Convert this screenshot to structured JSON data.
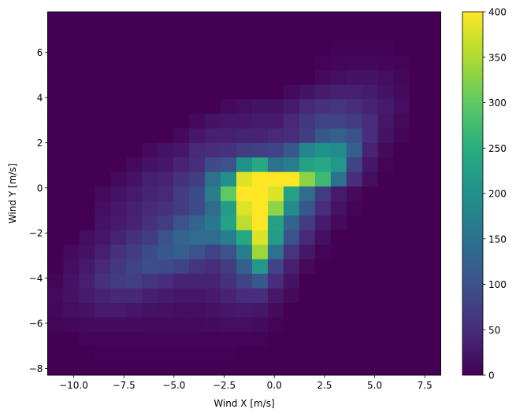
{
  "chart_data": {
    "type": "heatmap",
    "title": "",
    "xlabel": "Wind X [m/s]",
    "ylabel": "Wind Y [m/s]",
    "xlim": [
      -11.3,
      8.3
    ],
    "ylim": [
      -8.3,
      7.8
    ],
    "xticks": [
      -10.0,
      -7.5,
      -5.0,
      -2.5,
      0.0,
      2.5,
      5.0,
      7.5
    ],
    "xtick_labels": [
      "−10.0",
      "−7.5",
      "−5.0",
      "−2.5",
      "0.0",
      "2.5",
      "5.0",
      "7.5"
    ],
    "yticks": [
      -8,
      -6,
      -4,
      -2,
      0,
      2,
      4,
      6
    ],
    "ytick_labels": [
      "−8",
      "−6",
      "−4",
      "−2",
      "0",
      "2",
      "4",
      "6"
    ],
    "colormap": "viridis",
    "colorbar": {
      "range": [
        0,
        400
      ],
      "ticks": [
        0,
        50,
        100,
        150,
        200,
        250,
        300,
        350,
        400
      ],
      "tick_labels": [
        "0",
        "50",
        "100",
        "150",
        "200",
        "250",
        "300",
        "350",
        "400"
      ]
    },
    "grid": false,
    "bins": [
      25,
      25
    ],
    "counts_by_row_ascending_y": [
      [
        0,
        0,
        0,
        0,
        0,
        0,
        0,
        0,
        0,
        0,
        0,
        0,
        0,
        0,
        0,
        0,
        0,
        0,
        0,
        0,
        0,
        0,
        0,
        0,
        0
      ],
      [
        0,
        0,
        0,
        2,
        2,
        2,
        2,
        2,
        2,
        2,
        2,
        2,
        0,
        0,
        0,
        0,
        0,
        0,
        0,
        0,
        0,
        0,
        0,
        0,
        0
      ],
      [
        0,
        0,
        5,
        5,
        5,
        5,
        5,
        5,
        5,
        5,
        5,
        5,
        5,
        5,
        0,
        0,
        0,
        0,
        0,
        0,
        0,
        0,
        0,
        0,
        0
      ],
      [
        5,
        8,
        10,
        12,
        12,
        12,
        10,
        10,
        10,
        10,
        12,
        15,
        15,
        12,
        5,
        0,
        0,
        0,
        0,
        0,
        0,
        0,
        0,
        0,
        0
      ],
      [
        8,
        15,
        20,
        30,
        30,
        25,
        20,
        18,
        15,
        15,
        20,
        25,
        28,
        25,
        12,
        0,
        0,
        0,
        0,
        0,
        0,
        0,
        0,
        0,
        0
      ],
      [
        10,
        20,
        30,
        40,
        45,
        45,
        35,
        30,
        25,
        25,
        30,
        40,
        50,
        50,
        25,
        10,
        0,
        0,
        0,
        0,
        0,
        0,
        0,
        0,
        0
      ],
      [
        5,
        20,
        35,
        55,
        70,
        75,
        60,
        50,
        40,
        40,
        40,
        55,
        80,
        110,
        50,
        20,
        0,
        0,
        0,
        0,
        0,
        0,
        0,
        0,
        0
      ],
      [
        0,
        15,
        30,
        45,
        65,
        80,
        95,
        90,
        80,
        60,
        50,
        70,
        120,
        210,
        80,
        35,
        10,
        0,
        0,
        0,
        0,
        0,
        0,
        0,
        0
      ],
      [
        0,
        10,
        20,
        35,
        55,
        70,
        90,
        110,
        120,
        100,
        80,
        100,
        170,
        340,
        150,
        60,
        25,
        5,
        0,
        0,
        0,
        0,
        0,
        0,
        0
      ],
      [
        0,
        0,
        15,
        25,
        40,
        55,
        70,
        100,
        130,
        140,
        140,
        170,
        240,
        380,
        220,
        100,
        45,
        15,
        0,
        0,
        0,
        0,
        0,
        0,
        0
      ],
      [
        0,
        0,
        0,
        20,
        30,
        40,
        55,
        70,
        100,
        130,
        160,
        230,
        360,
        400,
        230,
        130,
        70,
        30,
        10,
        0,
        0,
        0,
        0,
        0,
        0
      ],
      [
        0,
        0,
        0,
        15,
        25,
        35,
        45,
        55,
        70,
        90,
        140,
        220,
        380,
        400,
        330,
        190,
        110,
        50,
        20,
        5,
        0,
        0,
        0,
        0,
        0
      ],
      [
        0,
        0,
        0,
        10,
        20,
        30,
        40,
        45,
        70,
        90,
        170,
        300,
        400,
        400,
        380,
        230,
        140,
        70,
        30,
        10,
        0,
        0,
        0,
        0,
        0
      ],
      [
        0,
        0,
        0,
        0,
        10,
        20,
        35,
        40,
        55,
        70,
        150,
        200,
        380,
        400,
        400,
        400,
        330,
        270,
        150,
        50,
        15,
        0,
        0,
        0,
        0
      ],
      [
        0,
        0,
        0,
        0,
        0,
        10,
        20,
        25,
        40,
        50,
        90,
        100,
        200,
        240,
        150,
        170,
        230,
        240,
        210,
        80,
        25,
        5,
        0,
        0,
        0
      ],
      [
        0,
        0,
        0,
        0,
        0,
        0,
        10,
        20,
        25,
        45,
        50,
        55,
        70,
        75,
        80,
        110,
        180,
        200,
        190,
        120,
        40,
        10,
        0,
        0,
        0
      ],
      [
        0,
        0,
        0,
        0,
        0,
        0,
        0,
        0,
        10,
        25,
        35,
        35,
        40,
        40,
        45,
        50,
        70,
        110,
        120,
        100,
        50,
        20,
        5,
        0,
        0
      ],
      [
        0,
        0,
        0,
        0,
        0,
        0,
        0,
        0,
        0,
        10,
        20,
        25,
        25,
        30,
        30,
        45,
        65,
        80,
        80,
        70,
        50,
        25,
        10,
        0,
        0
      ],
      [
        0,
        0,
        0,
        0,
        0,
        0,
        0,
        0,
        0,
        0,
        0,
        10,
        15,
        20,
        20,
        30,
        45,
        55,
        60,
        50,
        40,
        30,
        15,
        0,
        0
      ],
      [
        0,
        0,
        0,
        0,
        0,
        0,
        0,
        0,
        0,
        0,
        0,
        0,
        0,
        0,
        0,
        10,
        20,
        30,
        35,
        35,
        30,
        20,
        10,
        0,
        0
      ],
      [
        0,
        0,
        0,
        0,
        0,
        0,
        0,
        0,
        0,
        0,
        0,
        0,
        0,
        0,
        0,
        0,
        0,
        10,
        15,
        20,
        20,
        15,
        8,
        0,
        0
      ],
      [
        0,
        0,
        0,
        0,
        0,
        0,
        0,
        0,
        0,
        0,
        0,
        0,
        0,
        0,
        0,
        0,
        0,
        5,
        6,
        8,
        8,
        6,
        5,
        0,
        0
      ],
      [
        0,
        0,
        0,
        0,
        0,
        0,
        0,
        0,
        0,
        0,
        0,
        0,
        0,
        0,
        0,
        0,
        0,
        0,
        3,
        3,
        3,
        3,
        0,
        0,
        0
      ],
      [
        0,
        0,
        0,
        0,
        0,
        0,
        0,
        0,
        0,
        0,
        0,
        0,
        0,
        0,
        0,
        0,
        0,
        0,
        0,
        0,
        0,
        0,
        0,
        0,
        0
      ],
      [
        0,
        0,
        0,
        0,
        0,
        0,
        0,
        0,
        0,
        0,
        0,
        0,
        0,
        0,
        0,
        0,
        0,
        0,
        0,
        0,
        0,
        0,
        0,
        0,
        0
      ]
    ]
  }
}
